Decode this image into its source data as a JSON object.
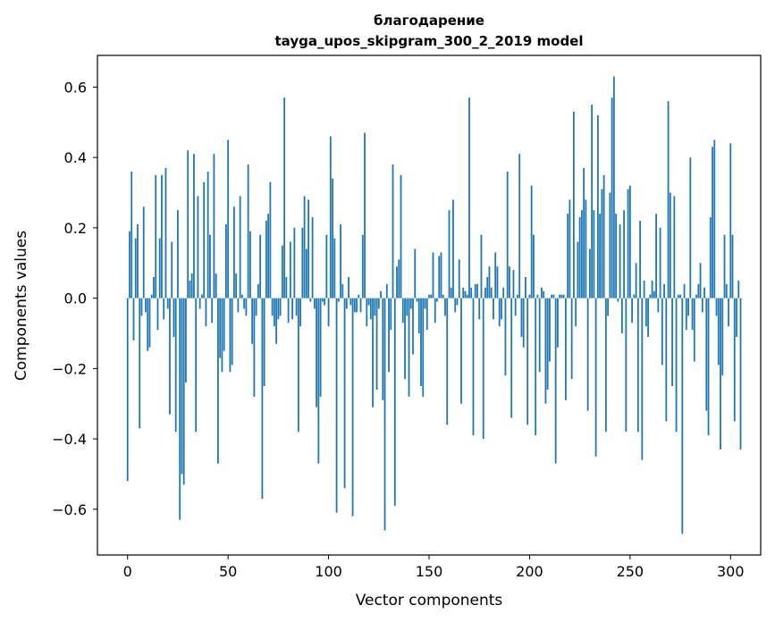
{
  "chart_data": {
    "type": "bar",
    "title_line1": "благодарение",
    "title_line2": "tayga_upos_skipgram_300_2_2019 model",
    "xlabel": "Vector components",
    "ylabel": "Components values",
    "xlim": [
      -15,
      315
    ],
    "ylim": [
      -0.73,
      0.69
    ],
    "xticks": [
      0,
      50,
      100,
      150,
      200,
      250,
      300
    ],
    "xtick_labels": [
      "0",
      "50",
      "100",
      "150",
      "200",
      "250",
      "300"
    ],
    "yticks": [
      -0.6,
      -0.4,
      -0.2,
      0.0,
      0.2,
      0.4,
      0.6
    ],
    "ytick_labels": [
      "−0.6",
      "−0.4",
      "−0.2",
      "0.0",
      "0.2",
      "0.4",
      "0.6"
    ],
    "bar_color": "#1f77b4",
    "values": [
      -0.52,
      0.19,
      0.36,
      -0.12,
      0.17,
      0.21,
      -0.37,
      -0.05,
      0.26,
      -0.04,
      -0.15,
      -0.14,
      0.01,
      0.06,
      0.35,
      -0.09,
      0.17,
      0.35,
      -0.06,
      0.37,
      -0.03,
      -0.33,
      0.16,
      -0.11,
      -0.38,
      0.25,
      -0.63,
      -0.5,
      -0.53,
      -0.24,
      0.42,
      0.05,
      0.07,
      0.41,
      -0.38,
      0.29,
      -0.03,
      0.01,
      0.33,
      -0.08,
      0.36,
      0.18,
      -0.07,
      0.41,
      0.07,
      -0.47,
      -0.17,
      -0.21,
      -0.15,
      0.21,
      0.45,
      -0.21,
      -0.19,
      0.26,
      0.07,
      -0.04,
      0.29,
      0.01,
      -0.03,
      -0.05,
      0.38,
      0.19,
      -0.13,
      -0.28,
      -0.05,
      0.04,
      0.18,
      -0.57,
      -0.25,
      0.22,
      0.24,
      0.33,
      -0.05,
      -0.08,
      -0.13,
      -0.06,
      -0.05,
      0.15,
      0.57,
      0.06,
      -0.07,
      0.16,
      -0.06,
      0.2,
      -0.05,
      -0.38,
      -0.08,
      0.2,
      0.29,
      0.14,
      0.28,
      -0.01,
      0.23,
      -0.03,
      -0.31,
      -0.47,
      -0.28,
      -0.01,
      -0.02,
      0.18,
      -0.08,
      0.46,
      0.34,
      0.17,
      -0.61,
      -0.01,
      0.21,
      0.04,
      -0.54,
      -0.03,
      0.06,
      -0.02,
      -0.62,
      -0.04,
      -0.04,
      0.01,
      -0.04,
      0.18,
      0.47,
      -0.08,
      -0.02,
      -0.06,
      -0.31,
      -0.05,
      -0.26,
      -0.03,
      0.02,
      -0.29,
      -0.66,
      0.04,
      -0.21,
      -0.09,
      0.38,
      -0.59,
      0.09,
      0.11,
      0.35,
      -0.07,
      -0.23,
      -0.05,
      -0.28,
      -0.03,
      -0.16,
      0.14,
      -0.01,
      -0.1,
      -0.25,
      -0.28,
      -0.03,
      -0.09,
      0.01,
      0.01,
      0.13,
      -0.07,
      -0.01,
      0.12,
      0.13,
      0.01,
      -0.05,
      -0.36,
      0.25,
      0.03,
      0.28,
      -0.04,
      -0.02,
      0.11,
      -0.3,
      0.03,
      0.02,
      0.01,
      0.57,
      0.03,
      -0.39,
      0.04,
      0.04,
      -0.06,
      0.18,
      -0.4,
      0.03,
      0.06,
      0.09,
      0.03,
      -0.06,
      0.13,
      0.09,
      -0.08,
      -0.06,
      0.03,
      -0.22,
      0.36,
      0.09,
      -0.34,
      0.08,
      -0.05,
      0.01,
      0.41,
      -0.11,
      -0.14,
      0.06,
      -0.36,
      0.01,
      0.32,
      0.18,
      -0.39,
      0.01,
      -0.21,
      0.03,
      0.02,
      -0.3,
      -0.26,
      -0.18,
      0.01,
      0.01,
      -0.47,
      -0.14,
      0.01,
      0.01,
      0.01,
      -0.29,
      0.24,
      0.28,
      -0.23,
      0.53,
      -0.08,
      0.16,
      0.23,
      0.25,
      0.37,
      0.28,
      -0.32,
      0.14,
      0.55,
      0.25,
      -0.45,
      0.52,
      0.24,
      0.31,
      0.35,
      -0.38,
      -0.05,
      0.3,
      0.57,
      0.63,
      0.24,
      -0.01,
      0.21,
      -0.1,
      0.25,
      -0.38,
      0.31,
      0.32,
      -0.07,
      0.01,
      0.1,
      -0.38,
      0.22,
      -0.46,
      0.05,
      -0.08,
      -0.11,
      0.01,
      0.05,
      0.02,
      0.24,
      -0.04,
      0.2,
      -0.19,
      0.04,
      -0.35,
      0.56,
      0.3,
      -0.25,
      0.29,
      -0.38,
      0.01,
      0.01,
      -0.67,
      0.04,
      -0.09,
      -0.05,
      0.4,
      -0.09,
      -0.18,
      0.01,
      0.04,
      0.1,
      -0.04,
      0.03,
      -0.32,
      -0.39,
      0.23,
      0.43,
      0.45,
      -0.05,
      -0.19,
      -0.43,
      -0.22,
      0.18,
      0.04,
      -0.08,
      0.44,
      0.18,
      -0.35,
      -0.11,
      0.05,
      -0.43
    ]
  }
}
